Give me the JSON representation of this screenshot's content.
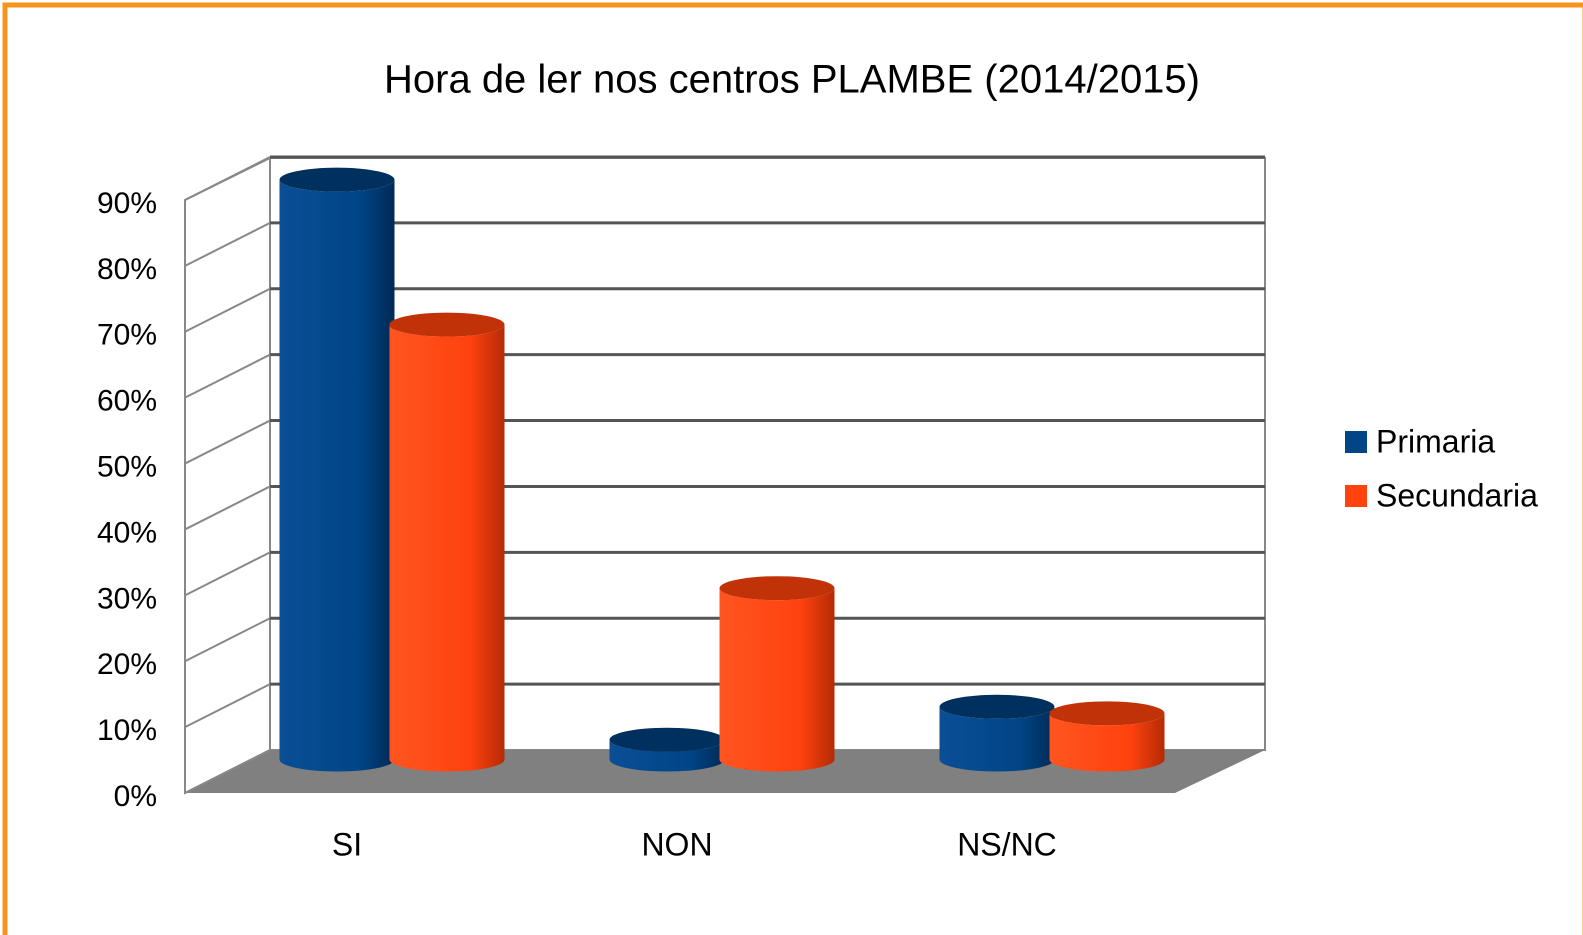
{
  "chart_data": {
    "type": "bar3d",
    "title": "Hora de ler nos centros PLAMBE (2014/2015)",
    "categories": [
      "SI",
      "NON",
      "NS/NC"
    ],
    "series": [
      {
        "name": "Primaria",
        "color": "#004586",
        "values": [
          88,
          3,
          8
        ]
      },
      {
        "name": "Secundaria",
        "color": "#ff420e",
        "values": [
          66,
          26,
          7
        ]
      }
    ],
    "ylim": [
      0,
      90
    ],
    "yticks": [
      {
        "value": 0,
        "label": "0%"
      },
      {
        "value": 10,
        "label": "10%"
      },
      {
        "value": 20,
        "label": "20%"
      },
      {
        "value": 30,
        "label": "30%"
      },
      {
        "value": 40,
        "label": "40%"
      },
      {
        "value": 50,
        "label": "50%"
      },
      {
        "value": 60,
        "label": "60%"
      },
      {
        "value": 70,
        "label": "70%"
      },
      {
        "value": 80,
        "label": "80%"
      },
      {
        "value": 90,
        "label": "90%"
      }
    ],
    "grid": true,
    "legend": "right"
  }
}
